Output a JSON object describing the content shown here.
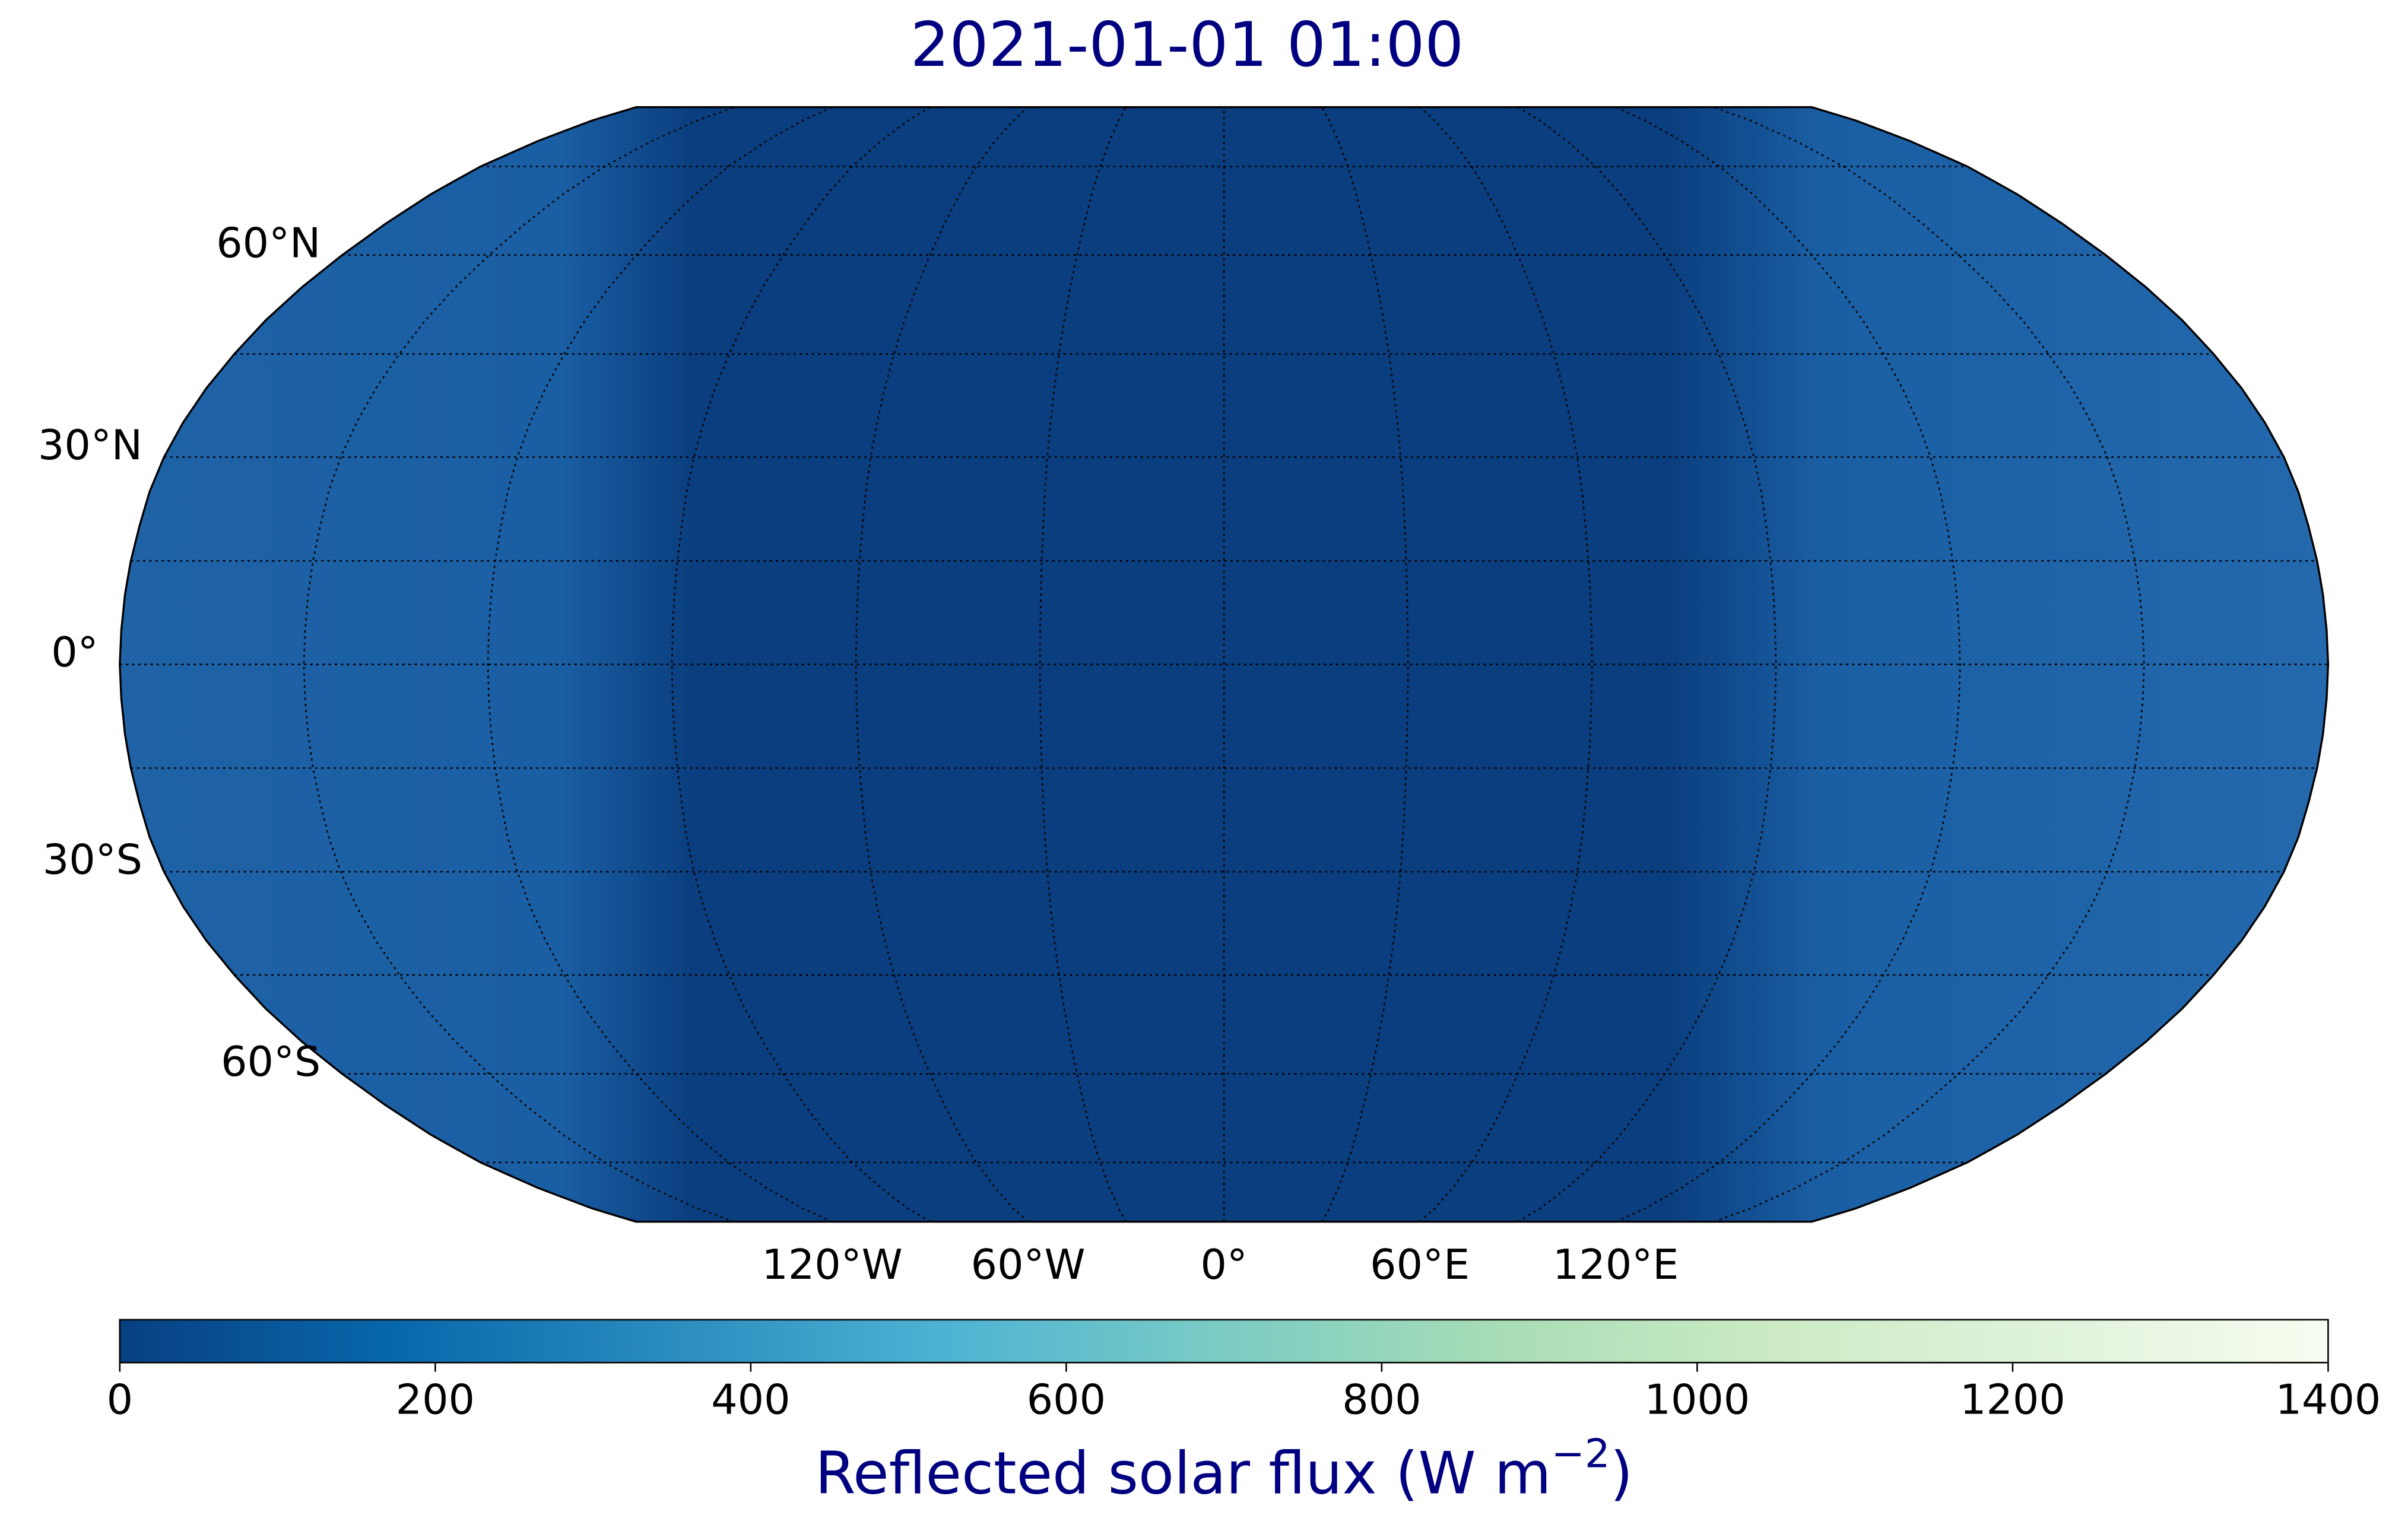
{
  "chart_data": {
    "type": "map",
    "title": "2021-01-01 01:00",
    "projection": "robinson",
    "parallels": [
      -75,
      -60,
      -45,
      -30,
      -15,
      0,
      15,
      30,
      45,
      60,
      75
    ],
    "meridians": [
      -180,
      -150,
      -120,
      -90,
      -60,
      -30,
      0,
      30,
      60,
      90,
      120,
      150,
      180
    ],
    "lat_ticks": [
      {
        "value": 60,
        "label": "60°N"
      },
      {
        "value": 30,
        "label": "30°N"
      },
      {
        "value": 0,
        "label": "0°"
      },
      {
        "value": -30,
        "label": "30°S"
      },
      {
        "value": -60,
        "label": "60°S"
      }
    ],
    "lon_ticks": [
      {
        "value": -120,
        "label": "120°W"
      },
      {
        "value": -60,
        "label": "60°W"
      },
      {
        "value": 0,
        "label": "0°"
      },
      {
        "value": 60,
        "label": "60°E"
      },
      {
        "value": 120,
        "label": "120°E"
      }
    ],
    "colorbar": {
      "label_prefix": "Reflected solar flux (W m",
      "label_exponent": "−2",
      "label_suffix": ")",
      "clim": [
        0,
        1400
      ],
      "ticks": [
        0,
        200,
        400,
        600,
        800,
        1000,
        1200,
        1400
      ],
      "colormap": [
        "#084081",
        "#0868ac",
        "#2b8cbe",
        "#4eb3d3",
        "#7bccc4",
        "#a8ddb5",
        "#ccebc5",
        "#e0f3db",
        "#f7fcf0"
      ]
    }
  }
}
